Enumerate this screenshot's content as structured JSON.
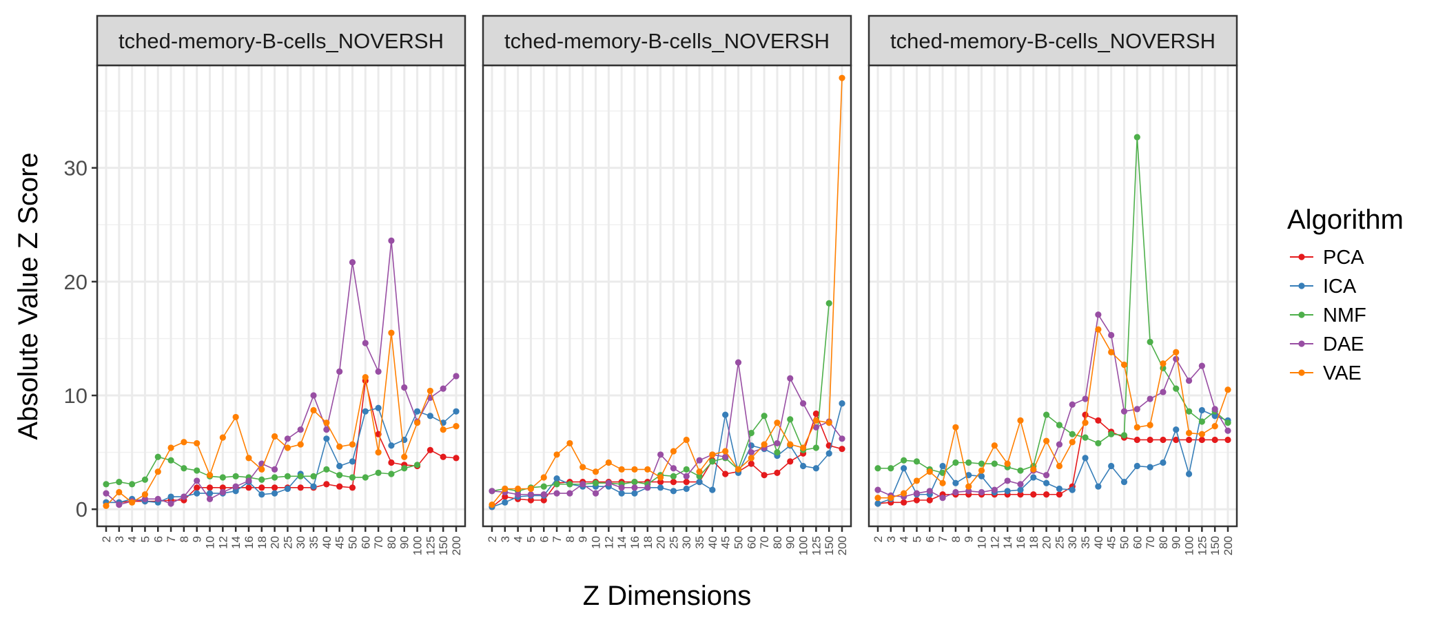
{
  "chart_data": {
    "type": "line",
    "ylabel": "Absolute Value Z Score",
    "xlabel": "Z Dimensions",
    "ylim": [
      -1.5,
      39
    ],
    "yticks": [
      0,
      10,
      20,
      30
    ],
    "categories": [
      "2",
      "3",
      "4",
      "5",
      "6",
      "7",
      "8",
      "9",
      "10",
      "12",
      "14",
      "16",
      "18",
      "20",
      "25",
      "30",
      "35",
      "40",
      "45",
      "50",
      "60",
      "70",
      "80",
      "90",
      "100",
      "125",
      "150",
      "200"
    ],
    "grid": true,
    "legend": {
      "title": "Algorithm",
      "position": "right",
      "items": [
        {
          "name": "PCA",
          "color": "#e41a1c"
        },
        {
          "name": "ICA",
          "color": "#377eb8"
        },
        {
          "name": "NMF",
          "color": "#4daf4a"
        },
        {
          "name": "DAE",
          "color": "#984ea3"
        },
        {
          "name": "VAE",
          "color": "#ff7f00"
        }
      ]
    },
    "panels": [
      {
        "strip": "tched-memory-B-cells_NOVERSH",
        "series": [
          {
            "name": "PCA",
            "values": [
              0.6,
              0.6,
              0.7,
              0.7,
              0.7,
              0.8,
              0.8,
              1.9,
              1.9,
              1.9,
              1.9,
              1.9,
              1.9,
              1.9,
              1.9,
              1.9,
              1.9,
              2.2,
              2.0,
              1.9,
              11.3,
              6.6,
              4.1,
              3.9,
              3.8,
              5.2,
              4.6,
              4.5
            ]
          },
          {
            "name": "ICA",
            "values": [
              0.6,
              0.6,
              0.9,
              0.7,
              0.6,
              1.1,
              1.1,
              1.4,
              1.4,
              1.4,
              1.6,
              2.4,
              1.3,
              1.4,
              1.8,
              3.1,
              2.0,
              6.2,
              3.8,
              4.2,
              8.6,
              8.9,
              5.6,
              6.1,
              8.6,
              8.2,
              7.6,
              8.6
            ]
          },
          {
            "name": "NMF",
            "values": [
              2.2,
              2.4,
              2.2,
              2.6,
              4.6,
              4.3,
              3.6,
              3.4,
              2.9,
              2.8,
              2.9,
              2.8,
              2.6,
              2.8,
              2.9,
              2.9,
              2.9,
              3.5,
              3.0,
              2.8,
              2.8,
              3.2,
              3.1,
              3.6,
              3.9,
              null,
              null,
              null
            ]
          },
          {
            "name": "DAE",
            "values": [
              1.4,
              0.4,
              0.7,
              0.9,
              0.9,
              0.5,
              1.1,
              2.5,
              0.9,
              1.5,
              2.0,
              2.5,
              4.0,
              3.5,
              6.2,
              7.0,
              10.0,
              7.0,
              12.1,
              21.7,
              14.6,
              12.1,
              23.6,
              10.7,
              7.7,
              9.8,
              10.6,
              11.7
            ]
          },
          {
            "name": "VAE",
            "values": [
              0.3,
              1.5,
              0.6,
              1.3,
              3.3,
              5.4,
              5.9,
              5.8,
              3.0,
              6.3,
              8.1,
              4.5,
              3.5,
              6.4,
              5.4,
              5.7,
              8.7,
              7.6,
              5.5,
              5.7,
              11.6,
              5.0,
              15.5,
              4.6,
              7.6,
              10.4,
              7.0,
              7.3
            ]
          }
        ]
      },
      {
        "strip": "tched-memory-B-cells_NOVERSH",
        "series": [
          {
            "name": "PCA",
            "values": [
              0.2,
              1.1,
              0.9,
              0.8,
              0.8,
              2.3,
              2.4,
              2.4,
              2.4,
              2.4,
              2.4,
              2.4,
              2.4,
              2.4,
              2.4,
              2.4,
              2.4,
              4.3,
              3.1,
              3.3,
              4.0,
              3.0,
              3.2,
              4.2,
              4.9,
              8.4,
              5.6,
              5.3
            ]
          },
          {
            "name": "ICA",
            "values": [
              0.2,
              0.6,
              1.1,
              1.2,
              1.2,
              2.7,
              2.2,
              2.0,
              2.0,
              2.0,
              1.4,
              1.4,
              1.9,
              1.9,
              1.6,
              1.8,
              2.4,
              1.7,
              8.3,
              3.2,
              5.6,
              5.3,
              4.7,
              5.6,
              3.8,
              3.6,
              4.9,
              9.3
            ]
          },
          {
            "name": "NMF",
            "values": [
              1.6,
              1.8,
              1.6,
              1.9,
              2.0,
              2.2,
              2.2,
              2.2,
              2.3,
              2.3,
              2.2,
              2.4,
              2.2,
              3.0,
              2.9,
              3.5,
              2.9,
              4.2,
              4.5,
              3.5,
              6.7,
              8.2,
              5.0,
              7.9,
              5.2,
              5.4,
              18.1,
              null
            ]
          },
          {
            "name": "DAE",
            "values": [
              1.6,
              1.5,
              1.3,
              1.3,
              1.3,
              1.4,
              1.4,
              2.2,
              1.4,
              2.3,
              1.9,
              1.9,
              1.9,
              4.8,
              3.6,
              2.9,
              4.3,
              4.8,
              4.6,
              12.9,
              5.0,
              5.4,
              5.8,
              11.5,
              9.3,
              7.2,
              7.7,
              6.2
            ]
          },
          {
            "name": "VAE",
            "values": [
              0.4,
              1.8,
              1.8,
              1.8,
              2.8,
              4.8,
              5.8,
              3.7,
              3.3,
              4.1,
              3.5,
              3.5,
              3.5,
              2.8,
              5.1,
              6.1,
              3.3,
              4.8,
              5.1,
              3.5,
              4.5,
              5.7,
              7.6,
              5.7,
              5.4,
              7.8,
              7.6,
              37.9
            ]
          }
        ]
      },
      {
        "strip": "tched-memory-B-cells_NOVERSH",
        "series": [
          {
            "name": "PCA",
            "values": [
              0.5,
              0.6,
              0.6,
              0.8,
              0.8,
              1.3,
              1.3,
              1.3,
              1.3,
              1.3,
              1.3,
              1.3,
              1.3,
              1.3,
              1.3,
              2.0,
              8.3,
              7.8,
              6.8,
              6.3,
              6.1,
              6.1,
              6.1,
              6.1,
              6.1,
              6.1,
              6.1,
              6.1
            ]
          },
          {
            "name": "ICA",
            "values": [
              0.5,
              0.9,
              3.6,
              1.3,
              1.3,
              3.8,
              2.3,
              3.0,
              2.9,
              1.5,
              1.6,
              1.7,
              2.8,
              2.3,
              1.8,
              1.7,
              4.5,
              2.0,
              3.8,
              2.4,
              3.8,
              3.7,
              4.1,
              7.0,
              3.1,
              8.7,
              8.2,
              7.8
            ]
          },
          {
            "name": "NMF",
            "values": [
              3.6,
              3.6,
              4.3,
              4.2,
              3.5,
              3.2,
              4.1,
              4.1,
              4.0,
              4.0,
              3.7,
              3.4,
              3.8,
              8.3,
              7.4,
              6.6,
              6.3,
              5.8,
              6.6,
              6.5,
              32.7,
              14.7,
              12.4,
              10.6,
              8.6,
              7.7,
              8.6,
              7.6
            ]
          },
          {
            "name": "DAE",
            "values": [
              1.7,
              1.2,
              1.1,
              1.4,
              1.6,
              1.0,
              1.5,
              1.6,
              1.5,
              1.7,
              2.5,
              2.2,
              3.4,
              3.0,
              5.7,
              9.2,
              9.7,
              17.1,
              15.3,
              8.6,
              8.8,
              9.7,
              10.3,
              13.2,
              11.3,
              12.6,
              8.8,
              6.9
            ]
          },
          {
            "name": "VAE",
            "values": [
              1.0,
              1.0,
              1.4,
              2.5,
              3.3,
              2.3,
              7.2,
              2.0,
              3.4,
              5.6,
              4.0,
              7.8,
              3.5,
              6.0,
              3.8,
              5.9,
              7.6,
              15.8,
              13.8,
              12.7,
              7.2,
              7.4,
              12.8,
              13.8,
              6.7,
              6.6,
              7.3,
              10.5
            ]
          }
        ]
      }
    ]
  }
}
